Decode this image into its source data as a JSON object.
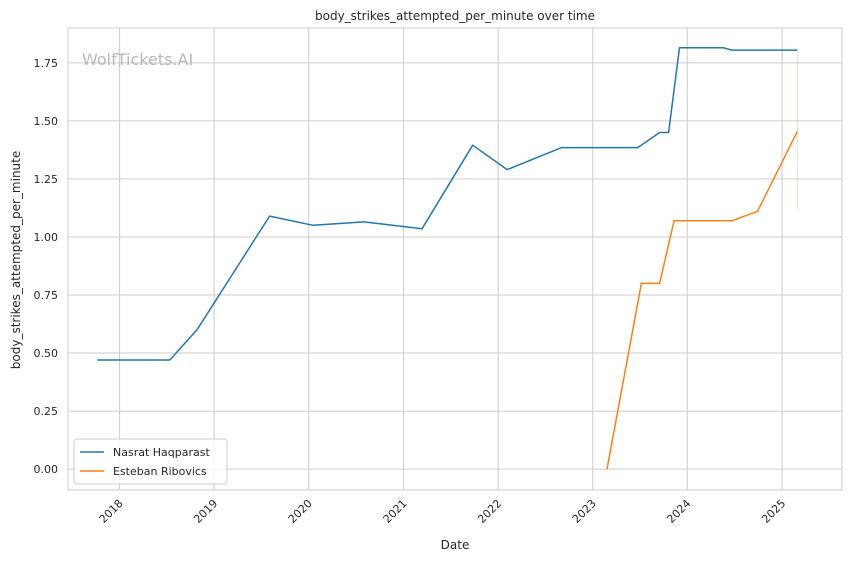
{
  "chart_data": {
    "type": "line",
    "title": "body_strikes_attempted_per_minute over time",
    "xlabel": "Date",
    "ylabel": "body_strikes_attempted_per_minute",
    "watermark": "WolfTickets.AI",
    "x_axis_type": "date",
    "ylim": [
      -0.09,
      1.9
    ],
    "xlim": [
      "2017-06-16",
      "2025-08-20"
    ],
    "grid": true,
    "legend_position": "bottom-left",
    "x_ticks": [
      "2018",
      "2019",
      "2020",
      "2021",
      "2022",
      "2023",
      "2024",
      "2025"
    ],
    "y_ticks": [
      0.0,
      0.25,
      0.5,
      0.75,
      1.0,
      1.25,
      1.5,
      1.75
    ],
    "y_tick_labels": [
      "0.00",
      "0.25",
      "0.50",
      "0.75",
      "1.00",
      "1.25",
      "1.50",
      "1.75"
    ],
    "series": [
      {
        "name": "Nasrat Haqparast",
        "color": "#1f77b4",
        "points": [
          [
            "2017-10-07",
            0.47
          ],
          [
            "2018-07-14",
            0.47
          ],
          [
            "2018-10-27",
            0.6
          ],
          [
            "2019-08-03",
            1.09
          ],
          [
            "2020-01-18",
            1.05
          ],
          [
            "2020-08-01",
            1.065
          ],
          [
            "2021-03-13",
            1.035
          ],
          [
            "2021-09-25",
            1.395
          ],
          [
            "2022-02-05",
            1.29
          ],
          [
            "2022-09-03",
            1.385
          ],
          [
            "2023-06-24",
            1.385
          ],
          [
            "2023-09-16",
            1.45
          ],
          [
            "2023-10-21",
            1.45
          ],
          [
            "2023-12-02",
            1.815
          ],
          [
            "2024-05-18",
            1.815
          ],
          [
            "2024-06-22",
            1.805
          ],
          [
            "2025-03-01",
            1.805
          ]
        ]
      },
      {
        "name": "Esteban Ribovics",
        "color": "#ff7f0e",
        "points": [
          [
            "2023-02-25",
            0.0
          ],
          [
            "2023-07-08",
            0.8
          ],
          [
            "2023-09-16",
            0.8
          ],
          [
            "2023-11-11",
            1.07
          ],
          [
            "2024-06-22",
            1.07
          ],
          [
            "2024-09-28",
            1.11
          ],
          [
            "2025-03-01",
            1.455
          ]
        ]
      }
    ]
  }
}
